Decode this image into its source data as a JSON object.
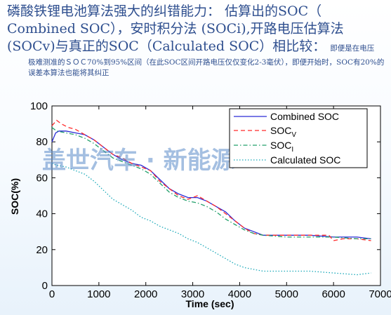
{
  "heading": {
    "line1": "磷酸铁锂电池算法强大的纠错能力：  估算出的SOC（",
    "line2": "Combined SOC），安时积分法 (SOCi),开路电压估算法",
    "line3_main": "(SOCv)与真正的SOC（Calculated SOC）相比较：",
    "line3_small": "即便是在电压",
    "line4": "极难测准的ＳＯＣ70%到95%区间（在此SOC区间开路电压仅仅变化2-3毫伏），即便开始时，SOC有20%的误差本算法也能将其纠正"
  },
  "watermark": "盖世汽车 · 新能源",
  "colors": {
    "combined": "#2b2bd6",
    "socv": "#ff2a2a",
    "soci": "#22a06b",
    "calculated": "#18a8b8"
  },
  "chart_data": {
    "type": "line",
    "xlabel": "Time (sec)",
    "ylabel": "SOC(%)",
    "xlim": [
      0,
      7000
    ],
    "ylim": [
      0,
      100
    ],
    "xticks": [
      0,
      1000,
      2000,
      3000,
      4000,
      5000,
      6000,
      7000
    ],
    "yticks": [
      0,
      20,
      40,
      60,
      80,
      100
    ],
    "legend_position": "top-right",
    "series": [
      {
        "name": "Combined SOC",
        "style": "solid",
        "colorKey": "combined",
        "x": [
          0,
          80,
          150,
          300,
          500,
          700,
          900,
          1100,
          1300,
          1500,
          1700,
          1900,
          2100,
          2300,
          2500,
          2700,
          2900,
          3100,
          3300,
          3500,
          3700,
          3900,
          4100,
          4300,
          4500,
          5000,
          5500,
          6000,
          6200,
          6500,
          6800
        ],
        "y": [
          80,
          85,
          86,
          86,
          85,
          84,
          81,
          77,
          73,
          70,
          68,
          67,
          64,
          59,
          54,
          51,
          49,
          49,
          47,
          44,
          41,
          36,
          32,
          30,
          28,
          28,
          28,
          27,
          27,
          27,
          26
        ]
      },
      {
        "name": "SOC",
        "sub": "V",
        "style": "dashed",
        "colorKey": "socv",
        "x": [
          0,
          100,
          200,
          350,
          500,
          700,
          900,
          1100,
          1300,
          1500,
          1700,
          1900,
          2100,
          2300,
          2500,
          2700,
          2900,
          3100,
          3300,
          3500,
          3700,
          3900,
          4100,
          4300,
          4500,
          5000,
          5500,
          5900,
          6000,
          6200,
          6500,
          6800
        ],
        "y": [
          89,
          92,
          90,
          88,
          87,
          84,
          81,
          77,
          73,
          71,
          68,
          66,
          64,
          58,
          54,
          50,
          48,
          50,
          47,
          44,
          40,
          36,
          32,
          29,
          28,
          28,
          28,
          28,
          25,
          26,
          26,
          25
        ]
      },
      {
        "name": "SOC",
        "sub": "I",
        "style": "dashdot",
        "colorKey": "soci",
        "x": [
          0,
          100,
          300,
          500,
          700,
          900,
          1100,
          1300,
          1500,
          1700,
          1900,
          2100,
          2300,
          2500,
          2700,
          2900,
          3100,
          3300,
          3500,
          3700,
          3900,
          4100,
          4300,
          4500,
          5000,
          5500,
          6000,
          6500,
          6800
        ],
        "y": [
          88,
          86,
          85,
          84,
          82,
          79,
          75,
          71,
          69,
          67,
          65,
          62,
          57,
          52,
          49,
          47,
          46,
          44,
          41,
          37,
          34,
          31,
          29,
          28,
          27,
          27,
          27,
          26,
          26
        ]
      },
      {
        "name": "Calculated SOC",
        "style": "dotted",
        "colorKey": "calculated",
        "x": [
          0,
          100,
          300,
          500,
          700,
          900,
          1100,
          1300,
          1500,
          1700,
          1900,
          2100,
          2300,
          2500,
          2700,
          2900,
          3100,
          3300,
          3500,
          3700,
          3900,
          4100,
          4300,
          4500,
          5000,
          5500,
          6000,
          6500,
          6800
        ],
        "y": [
          68,
          67,
          66,
          64,
          62,
          58,
          53,
          48,
          45,
          42,
          38,
          36,
          33,
          31,
          29,
          26,
          24,
          21,
          18,
          15,
          12,
          10,
          9,
          8,
          8,
          8,
          7,
          6,
          7
        ]
      }
    ]
  }
}
